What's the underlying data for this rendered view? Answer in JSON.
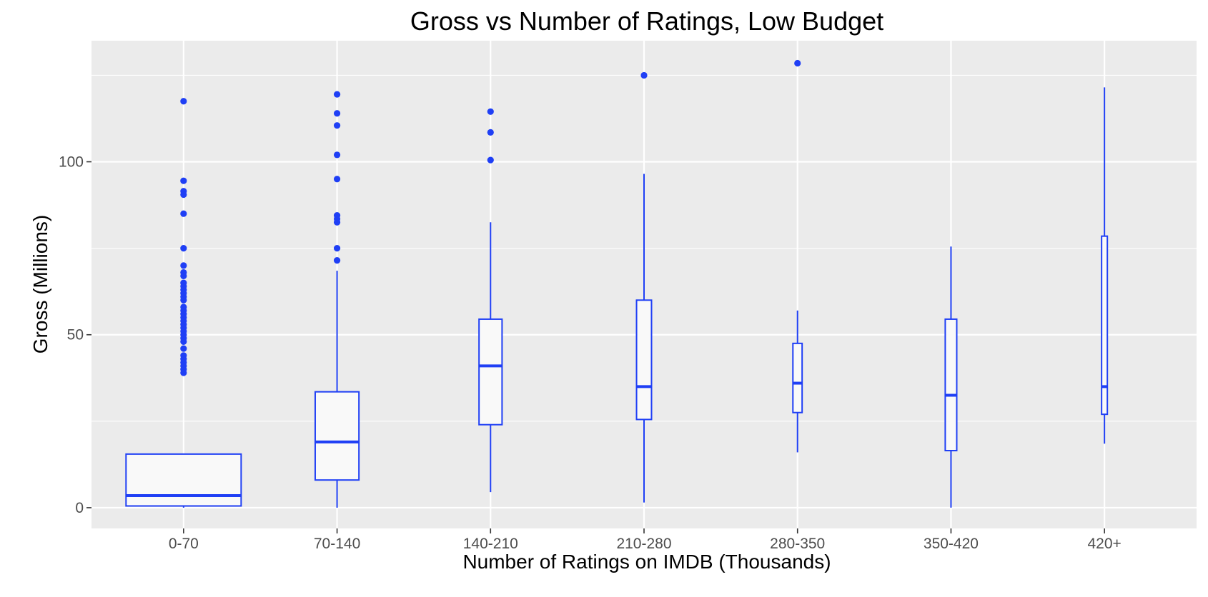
{
  "chart_data": {
    "type": "box",
    "title": "Gross vs Number of Ratings, Low Budget",
    "xlabel": "Number of Ratings on IMDB (Thousands)",
    "ylabel": "Gross (Millions)",
    "ylim": [
      -6,
      135
    ],
    "yticks": [
      0,
      50,
      100
    ],
    "grid": true,
    "colors": {
      "box_stroke": "#1f3ff5",
      "box_fill": "#f9f9f9",
      "panel_bg": "#ebebeb",
      "grid": "#ffffff"
    },
    "categories": [
      "0-70",
      "70-140",
      "140-210",
      "210-280",
      "280-350",
      "350-420",
      "420+"
    ],
    "boxes": [
      {
        "category": "0-70",
        "width": 1.0,
        "min": 0,
        "q1": 0.5,
        "median": 3.5,
        "q3": 15.5,
        "max": 15.5,
        "outliers": [
          117.5,
          94.5,
          91.5,
          90.5,
          85,
          75,
          70,
          68,
          67,
          65,
          64,
          63,
          62,
          61,
          60,
          58,
          57,
          56,
          55,
          54,
          53,
          52,
          51,
          50,
          49,
          48,
          46,
          44,
          43,
          42,
          41,
          40,
          39
        ]
      },
      {
        "category": "70-140",
        "width": 0.38,
        "min": 0,
        "q1": 8,
        "median": 19,
        "q3": 33.5,
        "max": 68.5,
        "outliers": [
          119.5,
          114,
          110.5,
          102,
          95,
          84.5,
          83.5,
          82.5,
          75,
          71.5
        ]
      },
      {
        "category": "140-210",
        "width": 0.2,
        "min": 4.5,
        "q1": 24,
        "median": 41,
        "q3": 54.5,
        "max": 82.5,
        "outliers": [
          114.5,
          108.5,
          100.5
        ]
      },
      {
        "category": "210-280",
        "width": 0.13,
        "min": 1.5,
        "q1": 25.5,
        "median": 35,
        "q3": 60,
        "max": 96.5,
        "outliers": [
          125
        ]
      },
      {
        "category": "280-350",
        "width": 0.08,
        "min": 16,
        "q1": 27.5,
        "median": 36,
        "q3": 47.5,
        "max": 57,
        "outliers": [
          128.5
        ]
      },
      {
        "category": "350-420",
        "width": 0.1,
        "min": 0,
        "q1": 16.5,
        "median": 32.5,
        "q3": 54.5,
        "max": 75.5,
        "outliers": []
      },
      {
        "category": "420+",
        "width": 0.05,
        "min": 18.5,
        "q1": 27,
        "median": 35,
        "q3": 78.5,
        "max": 121.5,
        "outliers": []
      }
    ]
  }
}
